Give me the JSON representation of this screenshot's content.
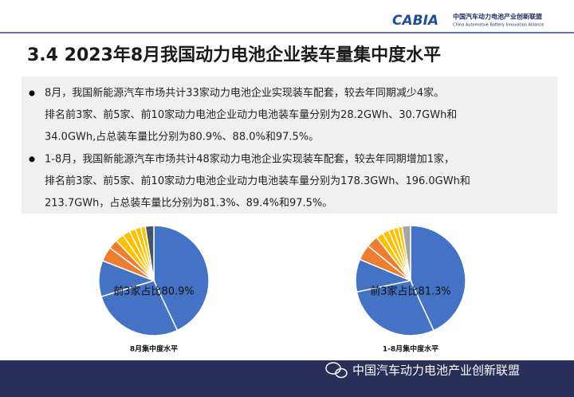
{
  "header": {
    "logo": "CABIA",
    "org_name": "中国汽车动力电池产业创新联盟",
    "org_name_en": "China Automotive Battery Innovation Alliance"
  },
  "title": "3.4 2023年8月我国动力电池企业装车量集中度水平",
  "bullets": [
    [
      "8月，我国新能源汽车市场共计33家动力电池企业实现装车配套，较去年同期减少4家。",
      "排名前3家、前5家、前10家动力电池企业动力电池装车量分别为28.2GWh、30.7GWh和",
      "34.0GWh,占总装车量比分别为80.9%、88.0%和97.5%。"
    ],
    [
      "1-8月，我国新能源汽车市场共计48家动力电池企业实现装车配套，较去年同期增加1家，",
      "排名前3家、前5家、前10家动力电池企业动力电池装车量分别为178.3GWh、196.0GWh和",
      "213.7GWh，占总装车量比分别为81.3%、89.4%和97.5%。"
    ]
  ],
  "chart_data": [
    {
      "type": "pie",
      "title": "8月集中度水平",
      "annotation": "前3家占比80.9%",
      "values": [
        43.0,
        27.3,
        10.6,
        4.3,
        2.8,
        2.5,
        2.2,
        1.8,
        1.6,
        1.4,
        2.5
      ],
      "colors": [
        "#4472c4",
        "#4472c4",
        "#4472c4",
        "#ed7d31",
        "#ed7d31",
        "#ffc000",
        "#ffc000",
        "#ffc000",
        "#ffc000",
        "#ffc000",
        "#44546a"
      ]
    },
    {
      "type": "pie",
      "title": "1-8月集中度水平",
      "annotation": "前3家占比81.3%",
      "values": [
        43.1,
        28.6,
        9.6,
        4.6,
        3.5,
        2.1,
        1.9,
        1.5,
        1.4,
        1.2,
        2.5
      ],
      "colors": [
        "#4472c4",
        "#4472c4",
        "#4472c4",
        "#ed7d31",
        "#ed7d31",
        "#ffc000",
        "#ffc000",
        "#ffc000",
        "#ffc000",
        "#ffc000",
        "#a5a5a5"
      ]
    }
  ],
  "footer": {
    "text": "中国汽车动力电池产业创新联盟"
  }
}
